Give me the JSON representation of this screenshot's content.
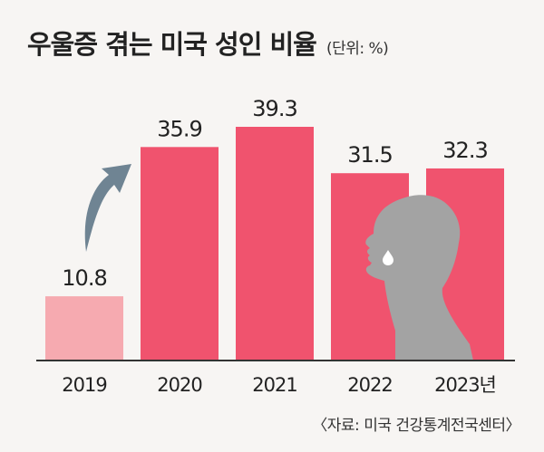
{
  "title": "우울증 겪는 미국 성인 비율",
  "unit": "(단위: %)",
  "source": "〈자료: 미국 건강통계전국센터〉",
  "colors": {
    "bar_first": "#f6aab0",
    "bar": "#f0536e",
    "axis": "#333333",
    "arrow": "#6f8493",
    "figure": "#a3a3a3",
    "tear": "#ffffff"
  },
  "chart_data": {
    "type": "bar",
    "categories": [
      "2019",
      "2020",
      "2021",
      "2022",
      "2023년"
    ],
    "values": [
      10.8,
      35.9,
      39.3,
      31.5,
      32.3
    ],
    "value_labels": [
      "10.8",
      "35.9",
      "39.3",
      "31.5",
      "32.3"
    ],
    "title": "우울증 겪는 미국 성인 비율",
    "xlabel": "",
    "ylabel": "",
    "ylim": [
      0,
      39.3
    ],
    "grid": false,
    "legend": "none"
  }
}
